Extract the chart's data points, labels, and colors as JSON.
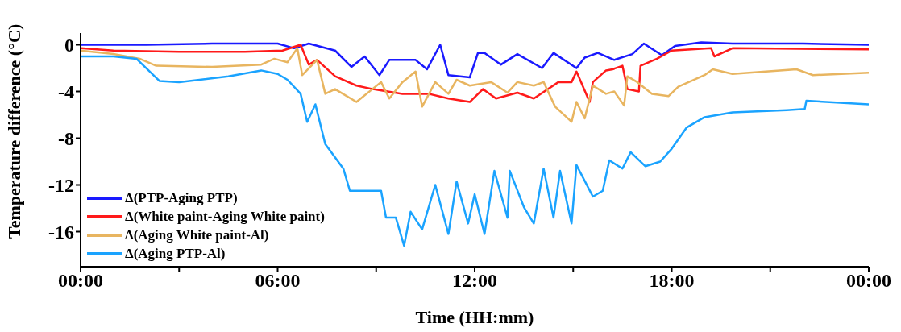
{
  "chart_data": {
    "type": "line",
    "xlabel": "Time (HH:mm)",
    "ylabel": "Temperature difference (°C)",
    "xlim": [
      0,
      24
    ],
    "ylim": [
      -19,
      1
    ],
    "xticks": [
      {
        "value": 0,
        "label": "00:00"
      },
      {
        "value": 3,
        "label": null
      },
      {
        "value": 6,
        "label": "06:00"
      },
      {
        "value": 9,
        "label": null
      },
      {
        "value": 12,
        "label": "12:00"
      },
      {
        "value": 15,
        "label": null
      },
      {
        "value": 18,
        "label": "18:00"
      },
      {
        "value": 21,
        "label": null
      },
      {
        "value": 24,
        "label": "00:00"
      }
    ],
    "yticks": [
      0,
      -4,
      -8,
      -12,
      -16
    ],
    "grid": false,
    "legend": "bottom left",
    "marker": "none",
    "line_style": "solid",
    "series": [
      {
        "name": "Δ(PTP-Aging PTP)",
        "color": "#1a1aff",
        "x": [
          0,
          2,
          4,
          6,
          6.5,
          6.95,
          7.75,
          8.25,
          8.65,
          9.1,
          9.4,
          10.2,
          10.55,
          10.95,
          11.2,
          11.85,
          12.1,
          12.3,
          12.8,
          13.3,
          14.05,
          14.4,
          15.1,
          15.35,
          15.75,
          16.25,
          16.8,
          17.15,
          17.7,
          18.1,
          18.9,
          19.85,
          22,
          24
        ],
        "values": [
          0,
          0,
          0.1,
          0.1,
          -0.3,
          0.1,
          -0.5,
          -1.9,
          -1,
          -2.6,
          -1.3,
          -1.3,
          -2.1,
          0,
          -2.6,
          -2.8,
          -0.7,
          -0.7,
          -1.7,
          -0.8,
          -2,
          -0.7,
          -2,
          -1.1,
          -0.7,
          -1.3,
          -0.8,
          0.1,
          -0.9,
          -0.1,
          0.2,
          0.1,
          0.1,
          0
        ]
      },
      {
        "name": "Δ(White paint-Aging White paint)",
        "color": "#ff1a1a",
        "x": [
          0,
          1,
          3,
          5,
          6.15,
          6.7,
          6.95,
          7.2,
          7.75,
          8.4,
          8.9,
          9.8,
          10.6,
          11.2,
          11.85,
          12.25,
          12.65,
          13.3,
          13.8,
          14.55,
          14.95,
          15.1,
          15.5,
          15.6,
          16,
          16.2,
          16.5,
          16.65,
          17,
          17.05,
          17.55,
          18,
          19.2,
          19.3,
          19.85,
          24
        ],
        "values": [
          -0.3,
          -0.5,
          -0.6,
          -0.6,
          -0.5,
          0,
          -1.7,
          -1.3,
          -2.7,
          -3.5,
          -3.8,
          -4.2,
          -4.2,
          -4.6,
          -4.9,
          -3.8,
          -4.6,
          -4.1,
          -4.6,
          -3.2,
          -3.2,
          -2.3,
          -4.9,
          -3.2,
          -2.2,
          -2.1,
          -1.8,
          -3.8,
          -4,
          -1.8,
          -1.2,
          -0.5,
          -0.3,
          -1,
          -0.3,
          -0.4
        ]
      },
      {
        "name": "Δ(Aging White paint-Al)",
        "color": "#e8b560",
        "x": [
          0,
          1,
          1.8,
          2.3,
          4,
          5.5,
          5.9,
          6.3,
          6.6,
          6.75,
          7.2,
          7.45,
          7.75,
          8.4,
          9.15,
          9.4,
          9.8,
          10.2,
          10.4,
          10.8,
          11.2,
          11.45,
          11.85,
          12.5,
          13,
          13.3,
          13.8,
          14.1,
          14.45,
          14.95,
          15.1,
          15.35,
          15.6,
          16,
          16.25,
          16.55,
          16.65,
          16.95,
          17.4,
          17.9,
          18.2,
          19,
          19.25,
          19.85,
          21.8,
          22.3,
          24
        ],
        "values": [
          -0.5,
          -0.8,
          -1.2,
          -1.8,
          -1.9,
          -1.7,
          -1.2,
          -1.5,
          -0.3,
          -2.6,
          -1.3,
          -4.2,
          -3.8,
          -4.9,
          -3.2,
          -4.6,
          -3.2,
          -2.3,
          -5.3,
          -3.2,
          -4.2,
          -3,
          -3.5,
          -3.2,
          -4.1,
          -3.2,
          -3.5,
          -3.2,
          -5.3,
          -6.6,
          -4.9,
          -6.3,
          -3.5,
          -4.2,
          -4,
          -5.2,
          -2.7,
          -3.2,
          -4.2,
          -4.4,
          -3.6,
          -2.6,
          -2.1,
          -2.5,
          -2.1,
          -2.6,
          -2.4
        ]
      },
      {
        "name": "Δ(Aging PTP-Al)",
        "color": "#1aa3ff",
        "x": [
          0,
          1,
          1.7,
          2.4,
          3,
          4.5,
          5.5,
          6,
          6.3,
          6.7,
          6.9,
          7.15,
          7.45,
          8,
          8.2,
          8.6,
          9.15,
          9.3,
          9.6,
          9.85,
          10.05,
          10.4,
          10.8,
          11.2,
          11.45,
          11.8,
          12,
          12.3,
          12.6,
          13,
          13.07,
          13.5,
          13.8,
          14.1,
          14.4,
          14.6,
          14.95,
          15.1,
          15.6,
          15.9,
          16.1,
          16.5,
          16.75,
          17.2,
          17.65,
          18,
          18.45,
          19,
          19.85,
          21.5,
          22.05,
          22.1,
          24
        ],
        "values": [
          -1,
          -1,
          -1.2,
          -3.1,
          -3.2,
          -2.7,
          -2.2,
          -2.5,
          -3,
          -4.2,
          -6.6,
          -5.1,
          -8.5,
          -10.6,
          -12.5,
          -12.5,
          -12.5,
          -14.8,
          -14.8,
          -17.2,
          -14.3,
          -15.8,
          -12,
          -16.2,
          -11.7,
          -15.3,
          -12.8,
          -16.2,
          -10.8,
          -14.8,
          -10.8,
          -13.9,
          -15.3,
          -10.6,
          -14.8,
          -10.8,
          -15.3,
          -10.3,
          -13,
          -12.5,
          -9.9,
          -10.6,
          -9.2,
          -10.4,
          -10,
          -8.9,
          -7.1,
          -6.2,
          -5.8,
          -5.6,
          -5.5,
          -4.8,
          -5.1
        ]
      }
    ]
  }
}
